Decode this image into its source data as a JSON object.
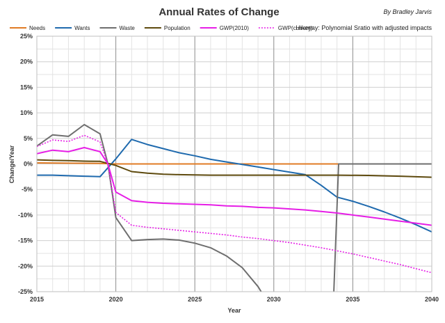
{
  "chart_data": {
    "type": "line",
    "title": "Annual Rates of Change",
    "author": "By Bradley Jarvis",
    "subtitle": "Hikeyay: Polynomial Sratio with adjusted impacts",
    "xlabel": "Year",
    "ylabel": "Change/Year",
    "xlim": [
      2015,
      2040
    ],
    "ylim": [
      -25,
      25
    ],
    "x_ticks": [
      "2015",
      "2020",
      "2025",
      "2030",
      "2035",
      "2040"
    ],
    "y_ticks": [
      "25%",
      "20%",
      "15%",
      "10%",
      "5%",
      "0%",
      "-5%",
      "-10%",
      "-15%",
      "-20%",
      "-25%"
    ],
    "grid": true,
    "legend_position": "top",
    "series": [
      {
        "name": "Needs",
        "color": "#E07B24",
        "dash": "solid",
        "points": [
          [
            2015,
            0.2
          ],
          [
            2019,
            0.1
          ],
          [
            2020,
            0.0
          ],
          [
            2034,
            0.0
          ],
          [
            2040,
            0.0
          ]
        ]
      },
      {
        "name": "Wants",
        "color": "#1F6AAE",
        "dash": "solid",
        "points": [
          [
            2015,
            -2.2
          ],
          [
            2016,
            -2.2
          ],
          [
            2017,
            -2.3
          ],
          [
            2018,
            -2.4
          ],
          [
            2019,
            -2.5
          ],
          [
            2020,
            1.0
          ],
          [
            2021,
            4.8
          ],
          [
            2022,
            3.8
          ],
          [
            2023,
            3.0
          ],
          [
            2024,
            2.2
          ],
          [
            2025,
            1.6
          ],
          [
            2026,
            0.9
          ],
          [
            2027,
            0.4
          ],
          [
            2028,
            -0.1
          ],
          [
            2029,
            -0.6
          ],
          [
            2030,
            -1.1
          ],
          [
            2031,
            -1.6
          ],
          [
            2032,
            -2.1
          ],
          [
            2033,
            -4.2
          ],
          [
            2034,
            -6.5
          ],
          [
            2035,
            -7.3
          ],
          [
            2036,
            -8.3
          ],
          [
            2037,
            -9.4
          ],
          [
            2038,
            -10.6
          ],
          [
            2039,
            -11.9
          ],
          [
            2040,
            -13.3
          ]
        ]
      },
      {
        "name": "Waste",
        "color": "#6E6E6E",
        "dash": "solid",
        "segments": [
          [
            [
              2015,
              3.5
            ],
            [
              2016,
              5.7
            ],
            [
              2017,
              5.4
            ],
            [
              2018,
              7.7
            ],
            [
              2019,
              5.9
            ],
            [
              2019.5,
              0.0
            ],
            [
              2020,
              -10.5
            ],
            [
              2021,
              -15.0
            ],
            [
              2022,
              -14.8
            ],
            [
              2023,
              -14.7
            ],
            [
              2024,
              -14.9
            ],
            [
              2025,
              -15.5
            ],
            [
              2026,
              -16.4
            ],
            [
              2027,
              -18.0
            ],
            [
              2028,
              -20.3
            ],
            [
              2029,
              -24.0
            ],
            [
              2029.2,
              -25.0
            ]
          ],
          [
            [
              2033.8,
              -25.0
            ],
            [
              2034.1,
              0.0
            ],
            [
              2035,
              0.0
            ],
            [
              2040,
              0.0
            ]
          ]
        ]
      },
      {
        "name": "Population",
        "color": "#5E4A0E",
        "dash": "solid",
        "points": [
          [
            2015,
            0.8
          ],
          [
            2016,
            0.7
          ],
          [
            2017,
            0.65
          ],
          [
            2018,
            0.55
          ],
          [
            2019,
            0.5
          ],
          [
            2020,
            -0.3
          ],
          [
            2021,
            -1.5
          ],
          [
            2022,
            -1.8
          ],
          [
            2023,
            -2.0
          ],
          [
            2024,
            -2.1
          ],
          [
            2025,
            -2.15
          ],
          [
            2026,
            -2.2
          ],
          [
            2028,
            -2.2
          ],
          [
            2030,
            -2.2
          ],
          [
            2032,
            -2.2
          ],
          [
            2034,
            -2.2
          ],
          [
            2036,
            -2.25
          ],
          [
            2038,
            -2.4
          ],
          [
            2040,
            -2.6
          ]
        ]
      },
      {
        "name": "GWP(2010)",
        "color": "#E61EE6",
        "dash": "solid",
        "points": [
          [
            2015,
            2.0
          ],
          [
            2016,
            2.7
          ],
          [
            2017,
            2.4
          ],
          [
            2018,
            3.2
          ],
          [
            2019,
            2.4
          ],
          [
            2019.5,
            0.0
          ],
          [
            2020,
            -5.5
          ],
          [
            2021,
            -7.2
          ],
          [
            2022,
            -7.5
          ],
          [
            2023,
            -7.7
          ],
          [
            2024,
            -7.8
          ],
          [
            2025,
            -7.9
          ],
          [
            2026,
            -8.0
          ],
          [
            2027,
            -8.2
          ],
          [
            2028,
            -8.3
          ],
          [
            2029,
            -8.5
          ],
          [
            2030,
            -8.6
          ],
          [
            2031,
            -8.8
          ],
          [
            2032,
            -9.0
          ],
          [
            2033,
            -9.3
          ],
          [
            2034,
            -9.6
          ],
          [
            2035,
            -10.0
          ],
          [
            2036,
            -10.4
          ],
          [
            2037,
            -10.8
          ],
          [
            2038,
            -11.2
          ],
          [
            2039,
            -11.6
          ],
          [
            2040,
            -12.0
          ]
        ]
      },
      {
        "name": "GWP(current)",
        "color": "#E61EE6",
        "dash": "dotted",
        "points": [
          [
            2015,
            3.4
          ],
          [
            2016,
            4.7
          ],
          [
            2017,
            4.4
          ],
          [
            2018,
            5.6
          ],
          [
            2019,
            4.3
          ],
          [
            2019.5,
            0.0
          ],
          [
            2020,
            -9.5
          ],
          [
            2021,
            -12.0
          ],
          [
            2022,
            -12.4
          ],
          [
            2023,
            -12.7
          ],
          [
            2024,
            -13.0
          ],
          [
            2025,
            -13.3
          ],
          [
            2026,
            -13.6
          ],
          [
            2027,
            -13.9
          ],
          [
            2028,
            -14.3
          ],
          [
            2029,
            -14.6
          ],
          [
            2030,
            -15.0
          ],
          [
            2031,
            -15.4
          ],
          [
            2032,
            -15.9
          ],
          [
            2033,
            -16.4
          ],
          [
            2034,
            -17.0
          ],
          [
            2035,
            -17.6
          ],
          [
            2036,
            -18.3
          ],
          [
            2037,
            -19.0
          ],
          [
            2038,
            -19.7
          ],
          [
            2039,
            -20.5
          ],
          [
            2040,
            -21.3
          ]
        ]
      }
    ]
  }
}
